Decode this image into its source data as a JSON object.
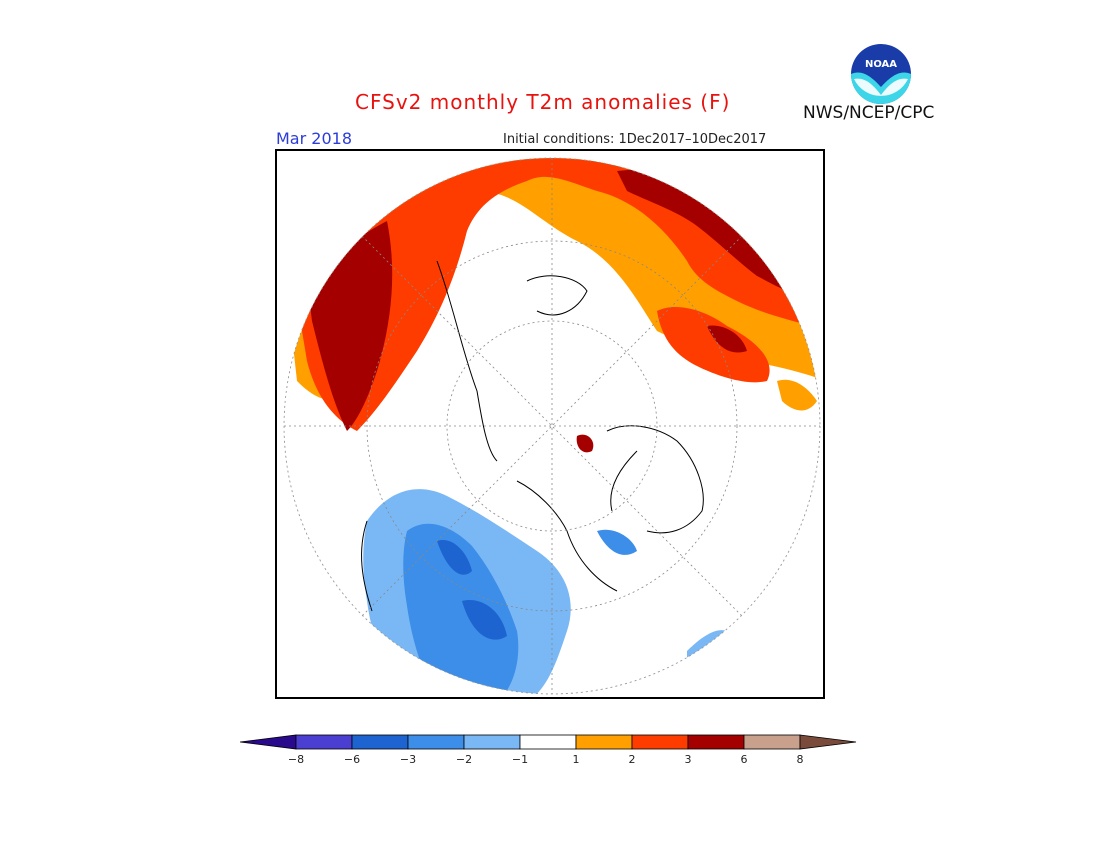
{
  "title": "CFSv2 monthly T2m anomalies (F)",
  "valid_month": "Mar 2018",
  "initial_conditions": "Initial conditions: 1Dec2017–10Dec2017",
  "agency": "NWS/NCEP/CPC",
  "logo_text": "NOAA",
  "projection": "north-polar-stereographic",
  "legend": {
    "bins": [
      {
        "from": null,
        "to": -8,
        "color": "#2a0a8c"
      },
      {
        "from": -8,
        "to": -6,
        "color": "#4a3fd0"
      },
      {
        "from": -6,
        "to": -3,
        "color": "#1e64d0"
      },
      {
        "from": -3,
        "to": -2,
        "color": "#3d8ee8"
      },
      {
        "from": -2,
        "to": -1,
        "color": "#7ab8f5"
      },
      {
        "from": -1,
        "to": 1,
        "color": "#ffffff"
      },
      {
        "from": 1,
        "to": 2,
        "color": "#ffa000"
      },
      {
        "from": 2,
        "to": 3,
        "color": "#ff3c00"
      },
      {
        "from": 3,
        "to": 6,
        "color": "#a50000"
      },
      {
        "from": 6,
        "to": 8,
        "color": "#c8a08c"
      },
      {
        "from": 8,
        "to": null,
        "color": "#7a4a3a"
      }
    ],
    "tick_labels": [
      "−8",
      "−6",
      "−3",
      "−2",
      "−1",
      "1",
      "2",
      "3",
      "6",
      "8"
    ]
  },
  "colors": {
    "warm_1_2": "#ffa000",
    "warm_2_3": "#ff3c00",
    "warm_3_6": "#a50000",
    "cold_1_2": "#7ab8f5",
    "cold_2_3": "#3d8ee8",
    "cold_3_6": "#1e64d0",
    "title": "#e8130f",
    "month": "#2b3cd8"
  }
}
